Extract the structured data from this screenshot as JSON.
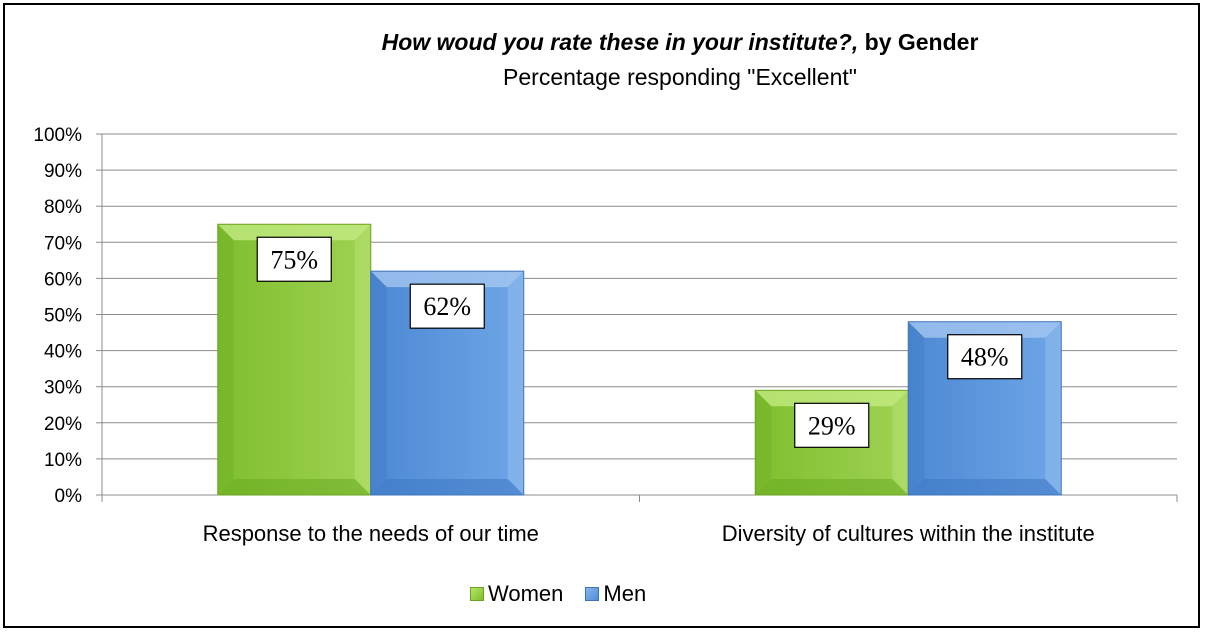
{
  "chart_data": {
    "type": "bar",
    "title_italic": "How woud you rate these in your institute?,",
    "title_bold": " by Gender",
    "subtitle": "Percentage responding \"Excellent\"",
    "categories": [
      "Response to the needs of our time",
      "Diversity of cultures within the institute"
    ],
    "series": [
      {
        "name": "Women",
        "values": [
          75,
          29
        ],
        "color": "#8cc63f"
      },
      {
        "name": "Men",
        "values": [
          62,
          48
        ],
        "color": "#5b96dd"
      }
    ],
    "data_labels": [
      [
        "75%",
        "29%"
      ],
      [
        "62%",
        "48%"
      ]
    ],
    "y_ticks": [
      "0%",
      "10%",
      "20%",
      "30%",
      "40%",
      "50%",
      "60%",
      "70%",
      "80%",
      "90%",
      "100%"
    ],
    "ylim": [
      0,
      100
    ],
    "grid": true,
    "legend_position": "bottom"
  }
}
